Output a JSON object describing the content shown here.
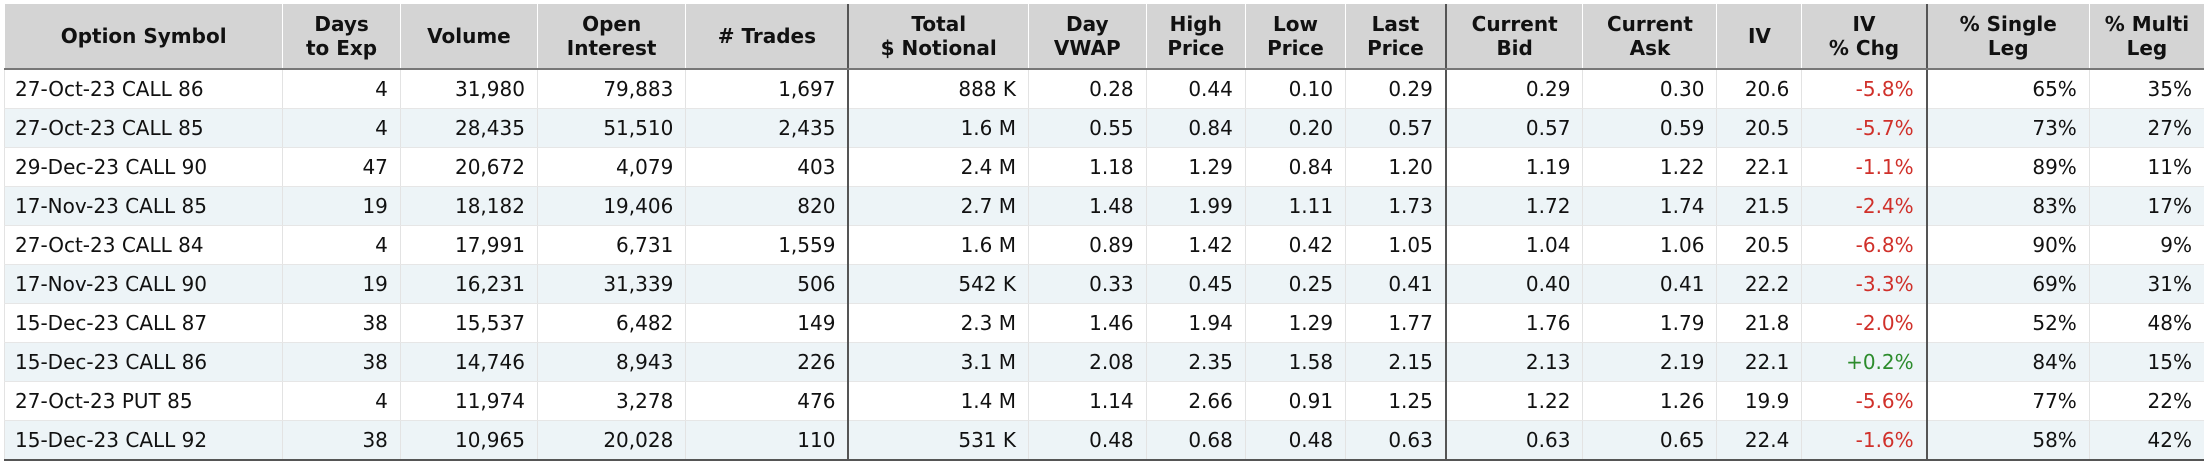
{
  "colors": {
    "negative": "#d0302a",
    "positive": "#2c8c2c",
    "header_bg": "#d4d4d4",
    "alt_row_bg": "#edf4f7"
  },
  "headers": [
    [
      "Option Symbol"
    ],
    [
      "Days",
      "to Exp"
    ],
    [
      "Volume"
    ],
    [
      "Open",
      "Interest"
    ],
    [
      "# Trades"
    ],
    [
      "Total",
      "$ Notional"
    ],
    [
      "Day",
      "VWAP"
    ],
    [
      "High",
      "Price"
    ],
    [
      "Low",
      "Price"
    ],
    [
      "Last",
      "Price"
    ],
    [
      "Current",
      "Bid"
    ],
    [
      "Current",
      "Ask"
    ],
    [
      "IV"
    ],
    [
      "IV",
      "% Chg"
    ],
    [
      "% Single",
      "Leg"
    ],
    [
      "% Multi",
      "Leg"
    ]
  ],
  "rows": [
    [
      "27-Oct-23 CALL 86",
      "4",
      "31,980",
      "79,883",
      "1,697",
      "888 K",
      "0.28",
      "0.44",
      "0.10",
      "0.29",
      "0.29",
      "0.30",
      "20.6",
      "-5.8%",
      "65%",
      "35%"
    ],
    [
      "27-Oct-23 CALL 85",
      "4",
      "28,435",
      "51,510",
      "2,435",
      "1.6 M",
      "0.55",
      "0.84",
      "0.20",
      "0.57",
      "0.57",
      "0.59",
      "20.5",
      "-5.7%",
      "73%",
      "27%"
    ],
    [
      "29-Dec-23 CALL 90",
      "47",
      "20,672",
      "4,079",
      "403",
      "2.4 M",
      "1.18",
      "1.29",
      "0.84",
      "1.20",
      "1.19",
      "1.22",
      "22.1",
      "-1.1%",
      "89%",
      "11%"
    ],
    [
      "17-Nov-23 CALL 85",
      "19",
      "18,182",
      "19,406",
      "820",
      "2.7 M",
      "1.48",
      "1.99",
      "1.11",
      "1.73",
      "1.72",
      "1.74",
      "21.5",
      "-2.4%",
      "83%",
      "17%"
    ],
    [
      "27-Oct-23 CALL 84",
      "4",
      "17,991",
      "6,731",
      "1,559",
      "1.6 M",
      "0.89",
      "1.42",
      "0.42",
      "1.05",
      "1.04",
      "1.06",
      "20.5",
      "-6.8%",
      "90%",
      "9%"
    ],
    [
      "17-Nov-23 CALL 90",
      "19",
      "16,231",
      "31,339",
      "506",
      "542 K",
      "0.33",
      "0.45",
      "0.25",
      "0.41",
      "0.40",
      "0.41",
      "22.2",
      "-3.3%",
      "69%",
      "31%"
    ],
    [
      "15-Dec-23 CALL 87",
      "38",
      "15,537",
      "6,482",
      "149",
      "2.3 M",
      "1.46",
      "1.94",
      "1.29",
      "1.77",
      "1.76",
      "1.79",
      "21.8",
      "-2.0%",
      "52%",
      "48%"
    ],
    [
      "15-Dec-23 CALL 86",
      "38",
      "14,746",
      "8,943",
      "226",
      "3.1 M",
      "2.08",
      "2.35",
      "1.58",
      "2.15",
      "2.13",
      "2.19",
      "22.1",
      "+0.2%",
      "84%",
      "15%"
    ],
    [
      "27-Oct-23 PUT 85",
      "4",
      "11,974",
      "3,278",
      "476",
      "1.4 M",
      "1.14",
      "2.66",
      "0.91",
      "1.25",
      "1.22",
      "1.26",
      "19.9",
      "-5.6%",
      "77%",
      "22%"
    ],
    [
      "15-Dec-23 CALL 92",
      "38",
      "10,965",
      "20,028",
      "110",
      "531 K",
      "0.48",
      "0.68",
      "0.48",
      "0.63",
      "0.63",
      "0.65",
      "22.4",
      "-1.6%",
      "58%",
      "42%"
    ]
  ]
}
